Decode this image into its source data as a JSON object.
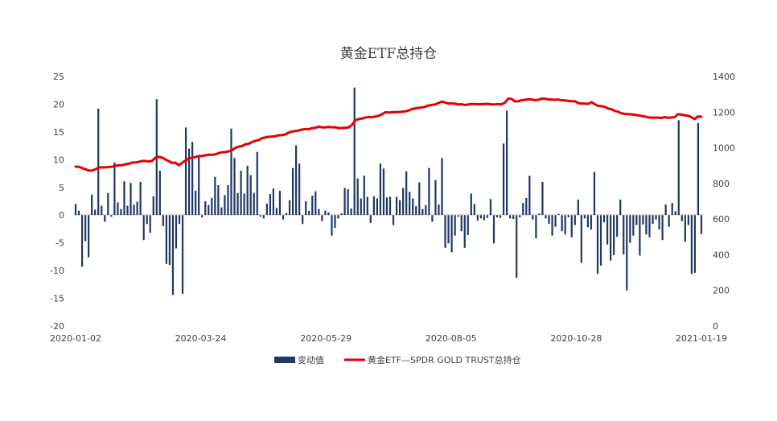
{
  "chart_data": {
    "type": "bar+line",
    "title": "黄金ETF总持仓",
    "x_ticks": [
      "2020-01-02",
      "2020-03-24",
      "2020-05-29",
      "2020-08-05",
      "2020-10-28",
      "2021-01-19"
    ],
    "y_left": {
      "range": [
        -20,
        25
      ],
      "ticks": [
        "25",
        "20",
        "15",
        "10",
        "5",
        "0",
        "-5",
        "-10",
        "-15",
        "-20"
      ]
    },
    "y_right": {
      "range": [
        0,
        1400
      ],
      "ticks": [
        "1400",
        "1200",
        "1000",
        "800",
        "600",
        "400",
        "200",
        "0"
      ]
    },
    "legend_placement": "bottom",
    "colors": {
      "bars": "#1f3864",
      "line": "#e60000"
    },
    "series": [
      {
        "name": "变动值",
        "type": "bar",
        "axis": "left",
        "values": [
          2,
          0.8,
          -9.3,
          -4.7,
          -7.6,
          3.7,
          1,
          19.2,
          1.7,
          -1.2,
          4,
          -0.3,
          9.5,
          2.3,
          1.1,
          6.1,
          1.7,
          5.8,
          1.9,
          2.4,
          6,
          -4.5,
          -1.6,
          -3.2,
          3.4,
          20.9,
          8,
          -2,
          -8.8,
          -9,
          -14.4,
          -6,
          -1.6,
          -14.2,
          15.8,
          12,
          13.2,
          4.4,
          10.7,
          -0.4,
          2.5,
          1.8,
          3.1,
          6.9,
          5.4,
          1.4,
          3.6,
          5.4,
          15.6,
          10.3,
          4,
          8,
          3.9,
          8.9,
          7.2,
          4,
          11.4,
          -0.3,
          -0.6,
          2.1,
          3.8,
          4.8,
          1.3,
          4.4,
          -0.8,
          0.4,
          2.7,
          8.5,
          12.6,
          9.3,
          -1.6,
          2.5,
          0.8,
          3.5,
          4.3,
          1.1,
          -1.1,
          0.8,
          0.5,
          -3.7,
          -2.3,
          -0.6,
          0.3,
          4.9,
          4.7,
          1.2,
          23,
          6.6,
          3,
          7.1,
          3.3,
          -1.4,
          3.4,
          3,
          9.3,
          8.4,
          3.2,
          3.3,
          -1.8,
          3.3,
          2.7,
          4.9,
          7.9,
          4.2,
          3,
          1.6,
          5.9,
          1.1,
          1.8,
          8.5,
          -1.2,
          6.3,
          1.9,
          10.3,
          -5.9,
          -5.1,
          -6.7,
          -3.7,
          -0.3,
          -2.9,
          -5.9,
          -3.6,
          3.9,
          2,
          -1,
          -0.6,
          -0.9,
          -0.5,
          2.9,
          -5.1,
          -0.4,
          -0.5,
          12.9,
          18.8,
          -0.6,
          -0.7,
          -11.3,
          -0.4,
          2.2,
          3.1,
          7.1,
          -0.8,
          -4.2,
          0.3,
          6,
          -0.6,
          -1.6,
          -3.7,
          -2.1,
          0.2,
          -2.9,
          -3.5,
          -0.4,
          -4,
          -1.8,
          2.8,
          -8.6,
          -0.6,
          -2.2,
          -2.6,
          7.8,
          -10.6,
          -9.1,
          -1.3,
          -5.3,
          -8.2,
          -7.2,
          -3.9,
          2.8,
          -7.1,
          -13.6,
          -5,
          -3.7,
          -1.8,
          -7.3,
          -1.7,
          -3.5,
          -4,
          -1.6,
          -0.8,
          -2.6,
          -4.5,
          1.9,
          -2.1,
          2.2,
          0.7,
          17.1,
          -1.1,
          -4.8,
          -1.8,
          -10.6,
          -10.4,
          16.6,
          -3.4
        ]
      },
      {
        "name": "黄金ETF—SPDR GOLD TRUST总持仓",
        "type": "line",
        "axis": "right",
        "values": [
          894,
          893,
          886,
          879,
          872,
          872,
          880,
          890,
          890,
          890,
          892,
          894,
          899,
          902,
          902,
          908,
          910,
          917,
          918,
          921,
          926,
          926,
          923,
          927,
          945,
          949,
          945,
          934,
          924,
          915,
          916,
          902,
          916,
          928,
          941,
          944,
          948,
          954,
          954,
          958,
          961,
          961,
          963,
          970,
          975,
          976,
          980,
          986,
          1000,
          1006,
          1010,
          1019,
          1023,
          1032,
          1039,
          1043,
          1054,
          1058,
          1062,
          1063,
          1065,
          1070,
          1071,
          1075,
          1085,
          1091,
          1094,
          1097,
          1102,
          1105,
          1104,
          1110,
          1112,
          1118,
          1115,
          1114,
          1117,
          1115,
          1115,
          1110,
          1111,
          1112,
          1114,
          1128,
          1154,
          1161,
          1164,
          1170,
          1172,
          1172,
          1175,
          1179,
          1187,
          1199,
          1198,
          1199,
          1200,
          1200,
          1202,
          1204,
          1209,
          1217,
          1221,
          1224,
          1226,
          1230,
          1237,
          1240,
          1243,
          1251,
          1259,
          1254,
          1248,
          1249,
          1247,
          1243,
          1244,
          1240,
          1243,
          1246,
          1245,
          1244,
          1245,
          1246,
          1246,
          1243,
          1243,
          1245,
          1244,
          1254,
          1276,
          1274,
          1260,
          1261,
          1267,
          1269,
          1272,
          1271,
          1267,
          1269,
          1276,
          1275,
          1272,
          1270,
          1269,
          1271,
          1266,
          1266,
          1263,
          1261,
          1261,
          1251,
          1248,
          1248,
          1246,
          1256,
          1244,
          1235,
          1233,
          1230,
          1220,
          1216,
          1207,
          1202,
          1194,
          1190,
          1189,
          1187,
          1185,
          1182,
          1179,
          1175,
          1171,
          1169,
          1169,
          1169,
          1167,
          1172,
          1168,
          1170,
          1172,
          1189,
          1186,
          1182,
          1180,
          1172,
          1161,
          1176,
          1174
        ]
      }
    ]
  }
}
